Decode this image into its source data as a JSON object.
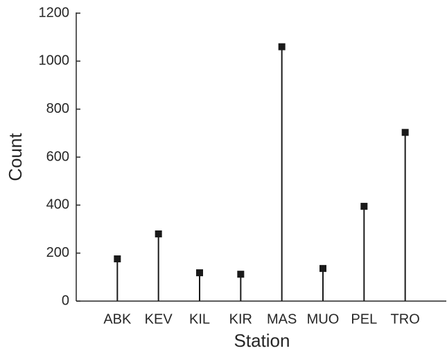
{
  "chart_data": {
    "type": "stem",
    "x_label": "Station",
    "y_label": "Count",
    "categories": [
      "ABK",
      "KEV",
      "KIL",
      "KIR",
      "MAS",
      "MUO",
      "PEL",
      "TRO"
    ],
    "values": [
      176,
      280,
      118,
      112,
      1060,
      136,
      395,
      703
    ],
    "color": "#1a1a1a",
    "ylim": [
      0,
      1200
    ],
    "yticks": [
      0,
      200,
      400,
      600,
      800,
      1000,
      1200
    ],
    "grid": false
  }
}
